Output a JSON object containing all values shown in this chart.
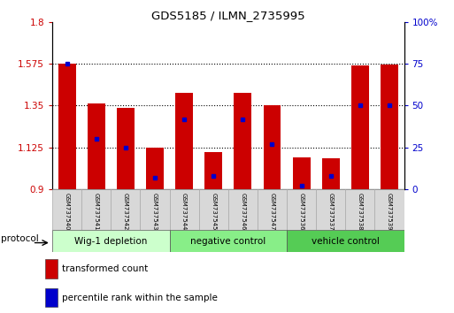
{
  "title": "GDS5185 / ILMN_2735995",
  "samples": [
    "GSM737540",
    "GSM737541",
    "GSM737542",
    "GSM737543",
    "GSM737544",
    "GSM737545",
    "GSM737546",
    "GSM737547",
    "GSM737536",
    "GSM737537",
    "GSM737538",
    "GSM737539"
  ],
  "transformed_counts": [
    1.575,
    1.36,
    1.34,
    1.125,
    1.42,
    1.1,
    1.42,
    1.35,
    1.07,
    1.065,
    1.565,
    1.57
  ],
  "percentile_ranks": [
    75,
    30,
    25,
    7,
    42,
    8,
    42,
    27,
    2,
    8,
    50,
    50
  ],
  "ylim_left": [
    0.9,
    1.8
  ],
  "ylim_right": [
    0,
    100
  ],
  "yticks_left": [
    0.9,
    1.125,
    1.35,
    1.575,
    1.8
  ],
  "yticks_right": [
    0,
    25,
    50,
    75,
    100
  ],
  "bar_color": "#cc0000",
  "dot_color": "#0000cc",
  "groups": [
    {
      "label": "Wig-1 depletion",
      "indices": [
        0,
        1,
        2,
        3
      ]
    },
    {
      "label": "negative control",
      "indices": [
        4,
        5,
        6,
        7
      ]
    },
    {
      "label": "vehicle control",
      "indices": [
        8,
        9,
        10,
        11
      ]
    }
  ],
  "group_colors": [
    "#ccffcc",
    "#88ee88",
    "#55cc55"
  ],
  "legend_red_label": "transformed count",
  "legend_blue_label": "percentile rank within the sample",
  "protocol_label": "protocol",
  "bar_baseline": 0.9,
  "right_axis_color": "#0000cc",
  "left_axis_color": "#cc0000",
  "bar_width": 0.6,
  "figsize": [
    5.13,
    3.54
  ],
  "dpi": 100
}
